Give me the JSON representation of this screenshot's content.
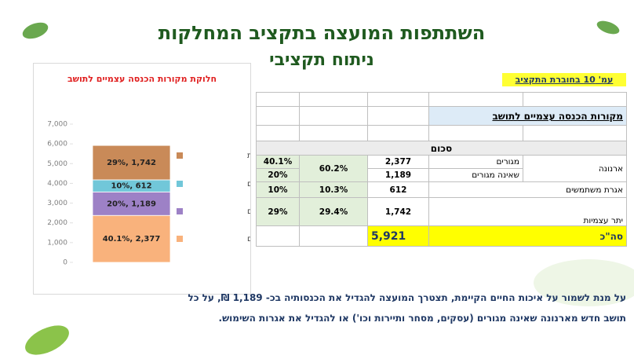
{
  "header": {
    "title": "השתתפות המועצה בתקציב המחלקות",
    "subtitle": "ניתוח תקציבי",
    "badge": "עמ' 10 בחוברת התקציב"
  },
  "chart_data": {
    "type": "stacked_bar",
    "title": "חלוקת מקורות הכנסה עצמיים לתושב",
    "categories": [
      null
    ],
    "series": [
      {
        "name": "ארנונה מגורים",
        "color": "#f9b27c",
        "values": [
          2377
        ],
        "value_labels": [
          "40.1%, 2,377"
        ]
      },
      {
        "name": "ארנונה שאינה מגורים",
        "color": "#9d81c6",
        "values": [
          1189
        ],
        "value_labels": [
          "20%, 1,189"
        ]
      },
      {
        "name": "אגרת משתמשים",
        "color": "#71c7d9",
        "values": [
          612
        ],
        "value_labels": [
          "10%, 612"
        ]
      },
      {
        "name": "יתר עצמיות",
        "color": "#c98a58",
        "values": [
          1742
        ],
        "value_labels": [
          "29%, 1,742"
        ]
      }
    ],
    "ylim": [
      0,
      7000
    ],
    "yticks": [
      0,
      {
        "value": 1000,
        "label": "1,000"
      },
      {
        "value": 2000,
        "label": "2,000"
      },
      {
        "value": 3000,
        "label": "3,000"
      },
      {
        "value": 4000,
        "label": "4,000"
      },
      {
        "value": 5000,
        "label": "5,000"
      },
      {
        "value": 6000,
        "label": "6,000"
      },
      {
        "value": 7000,
        "label": "7,000"
      }
    ],
    "grid": false,
    "legend": "right"
  },
  "table": {
    "heading": "מקורות הכנסה עצמיים לתושב",
    "header": "סכום",
    "rows": [
      {
        "label": "ארנונה",
        "sub": "מגורים",
        "amount": "2,377",
        "group_pct": "60.2%",
        "pct": "40.1%"
      },
      {
        "sub": "שאינה מגורים",
        "amount": "1,189",
        "pct": "20%"
      },
      {
        "label": "אגרת משתמשים",
        "amount": "612",
        "group_pct": "10.3%",
        "pct": "10%"
      },
      {
        "label": "יתר עצמיות",
        "amount": "1,742",
        "group_pct": "29.4%",
        "pct": "29%"
      }
    ],
    "total": {
      "label": "סה\"כ",
      "amount": "5,921"
    }
  },
  "footer": {
    "lines": [
      "על מנת לשמור על איכות החיים הקיימת, תצטרך המועצה להגדיל את הכנסותיה  בכ- 1,189 ₪, על כל",
      "תושב חדש מארנונה שאינה מגורים (עסקים, מסחר ותיירות וכו') או להגדיל את אגרות השימוש."
    ]
  }
}
